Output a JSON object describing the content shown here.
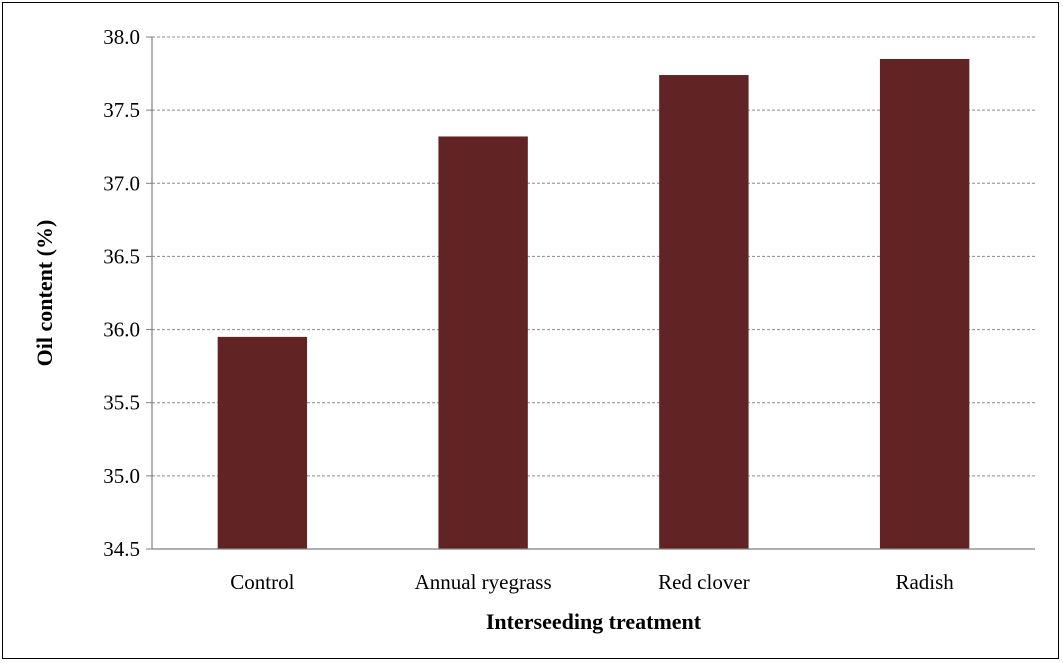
{
  "chart_data": {
    "type": "bar",
    "title": "",
    "xlabel": "Interseeding treatment",
    "ylabel": "Oil content (%)",
    "categories": [
      "Control",
      "Annual ryegrass",
      "Red clover",
      "Radish"
    ],
    "values": [
      35.95,
      37.32,
      37.74,
      37.85
    ],
    "ylim": [
      34.5,
      38.0
    ],
    "yticks": [
      "34.5",
      "35.0",
      "35.5",
      "36.0",
      "36.5",
      "37.0",
      "37.5",
      "38.0"
    ],
    "grid": "horizontal dashed",
    "legend": "none",
    "bar_color": "#622324",
    "grid_color": "#8c8c8c",
    "axis_color": "#7f7f7f"
  }
}
